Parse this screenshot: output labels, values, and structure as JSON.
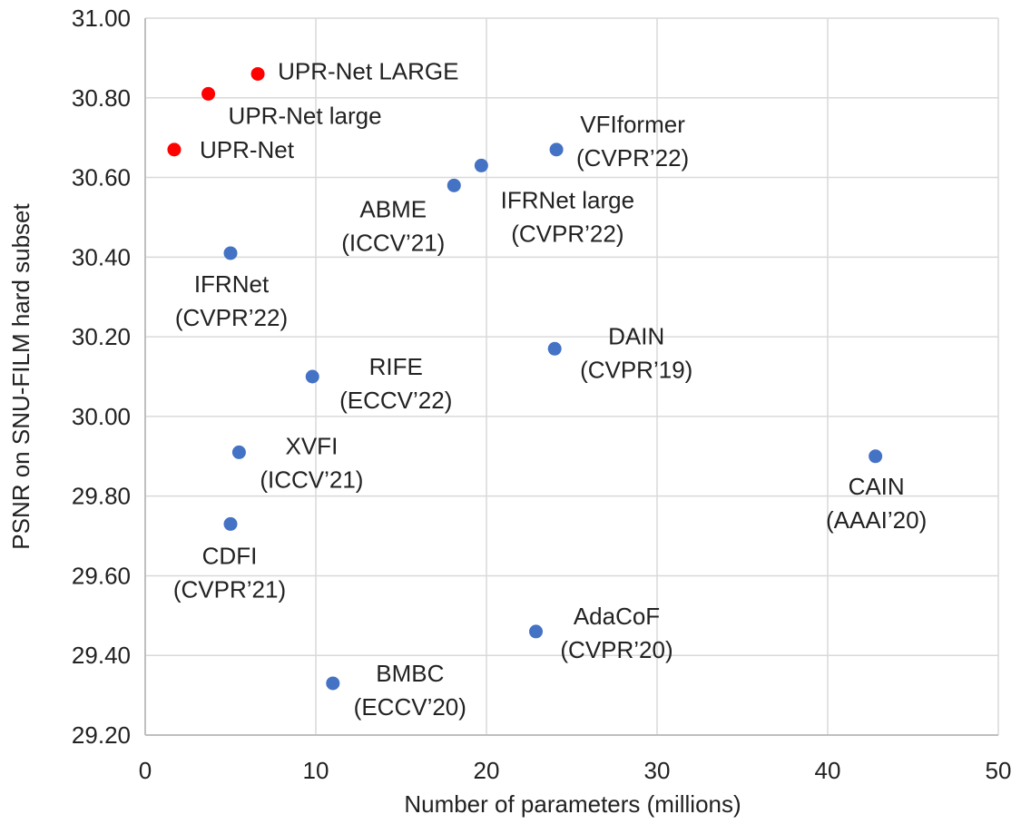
{
  "chart_data": {
    "type": "scatter",
    "title": "",
    "xlabel": "Number of parameters (millions)",
    "ylabel": "PSNR on SNU-FILM hard subset",
    "xlim": [
      0,
      50
    ],
    "ylim": [
      29.2,
      31.0
    ],
    "xticks": [
      "0",
      "10",
      "20",
      "30",
      "40",
      "50"
    ],
    "yticks": [
      "29.20",
      "29.40",
      "29.60",
      "29.80",
      "30.00",
      "30.20",
      "30.40",
      "30.60",
      "30.80",
      "31.00"
    ],
    "grid": true,
    "colors": {
      "ours": "#ff0000",
      "others": "#4472c4",
      "grid": "#d9d9d9",
      "axis": "#bfbfbf"
    },
    "points": [
      {
        "x": 1.7,
        "y": 30.67,
        "group": "ours",
        "label": [
          "UPR-Net"
        ]
      },
      {
        "x": 3.7,
        "y": 30.81,
        "group": "ours",
        "label": [
          "UPR-Net large"
        ]
      },
      {
        "x": 6.6,
        "y": 30.86,
        "group": "ours",
        "label": [
          "UPR-Net LARGE"
        ]
      },
      {
        "x": 24.1,
        "y": 30.67,
        "group": "others",
        "label": [
          "VFIformer",
          "(CVPR’22)"
        ]
      },
      {
        "x": 19.7,
        "y": 30.63,
        "group": "others",
        "label": [
          "IFRNet large",
          "(CVPR’22)"
        ]
      },
      {
        "x": 18.1,
        "y": 30.58,
        "group": "others",
        "label": [
          "ABME",
          "(ICCV’21)"
        ]
      },
      {
        "x": 5.0,
        "y": 30.41,
        "group": "others",
        "label": [
          "IFRNet",
          "(CVPR’22)"
        ]
      },
      {
        "x": 24.0,
        "y": 30.17,
        "group": "others",
        "label": [
          "DAIN",
          "(CVPR’19)"
        ]
      },
      {
        "x": 9.8,
        "y": 30.1,
        "group": "others",
        "label": [
          "RIFE",
          "(ECCV’22)"
        ]
      },
      {
        "x": 5.5,
        "y": 29.91,
        "group": "others",
        "label": [
          "XVFI",
          "(ICCV’21)"
        ]
      },
      {
        "x": 42.8,
        "y": 29.9,
        "group": "others",
        "label": [
          "CAIN",
          "(AAAI’20)"
        ]
      },
      {
        "x": 5.0,
        "y": 29.73,
        "group": "others",
        "label": [
          "CDFI",
          "(CVPR’21)"
        ]
      },
      {
        "x": 22.9,
        "y": 29.46,
        "group": "others",
        "label": [
          "AdaCoF",
          "(CVPR’20)"
        ]
      },
      {
        "x": 11.0,
        "y": 29.33,
        "group": "others",
        "label": [
          "BMBC",
          "(ECCV’20)"
        ]
      }
    ]
  }
}
